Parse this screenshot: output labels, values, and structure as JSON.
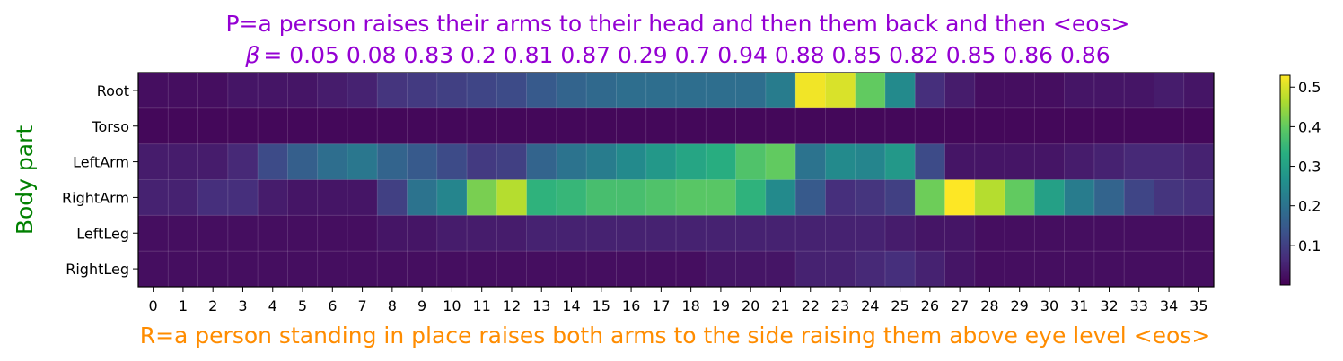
{
  "chart_data": {
    "type": "heatmap",
    "title_line1": "P=a person raises their arms to their head and then them back and then <eos>",
    "title_line2_symbol": "β",
    "title_line2_rest": "= 0.05 0.08 0.83 0.2 0.81 0.87 0.29 0.7 0.94 0.88 0.85 0.82 0.85 0.86 0.86",
    "ylabel": "Body part",
    "xlabel": "R=a person standing in place raises both arms to the side raising them above eye level <eos>",
    "title_color": "#9400D3",
    "ylabel_color": "#008000",
    "xlabel_color": "#FF8C00",
    "rows": [
      "Root",
      "Torso",
      "LeftArm",
      "RightArm",
      "LeftLeg",
      "RightLeg"
    ],
    "columns": [
      "0",
      "1",
      "2",
      "3",
      "4",
      "5",
      "6",
      "7",
      "8",
      "9",
      "10",
      "11",
      "12",
      "13",
      "14",
      "15",
      "16",
      "17",
      "18",
      "19",
      "20",
      "21",
      "22",
      "23",
      "24",
      "25",
      "26",
      "27",
      "28",
      "29",
      "30",
      "31",
      "32",
      "33",
      "34",
      "35"
    ],
    "values": [
      [
        0.02,
        0.02,
        0.02,
        0.03,
        0.03,
        0.03,
        0.04,
        0.05,
        0.08,
        0.09,
        0.1,
        0.11,
        0.12,
        0.15,
        0.17,
        0.18,
        0.19,
        0.19,
        0.19,
        0.19,
        0.19,
        0.22,
        0.52,
        0.5,
        0.4,
        0.25,
        0.07,
        0.04,
        0.02,
        0.02,
        0.02,
        0.03,
        0.03,
        0.03,
        0.04,
        0.03
      ],
      [
        0.01,
        0.01,
        0.01,
        0.01,
        0.01,
        0.01,
        0.01,
        0.01,
        0.01,
        0.01,
        0.01,
        0.01,
        0.01,
        0.01,
        0.01,
        0.01,
        0.01,
        0.01,
        0.01,
        0.01,
        0.01,
        0.01,
        0.01,
        0.01,
        0.01,
        0.01,
        0.01,
        0.01,
        0.01,
        0.01,
        0.01,
        0.01,
        0.01,
        0.01,
        0.01,
        0.01
      ],
      [
        0.04,
        0.04,
        0.04,
        0.06,
        0.12,
        0.16,
        0.19,
        0.21,
        0.17,
        0.15,
        0.12,
        0.09,
        0.1,
        0.17,
        0.2,
        0.22,
        0.25,
        0.28,
        0.31,
        0.33,
        0.38,
        0.4,
        0.2,
        0.25,
        0.24,
        0.28,
        0.12,
        0.03,
        0.03,
        0.03,
        0.03,
        0.04,
        0.05,
        0.06,
        0.06,
        0.05
      ],
      [
        0.05,
        0.05,
        0.07,
        0.07,
        0.04,
        0.03,
        0.03,
        0.03,
        0.1,
        0.2,
        0.24,
        0.42,
        0.47,
        0.34,
        0.35,
        0.37,
        0.37,
        0.38,
        0.39,
        0.39,
        0.34,
        0.25,
        0.15,
        0.07,
        0.08,
        0.1,
        0.41,
        0.53,
        0.47,
        0.4,
        0.3,
        0.22,
        0.17,
        0.11,
        0.08,
        0.07
      ],
      [
        0.02,
        0.02,
        0.02,
        0.02,
        0.02,
        0.02,
        0.02,
        0.02,
        0.03,
        0.03,
        0.04,
        0.04,
        0.04,
        0.05,
        0.05,
        0.05,
        0.05,
        0.05,
        0.05,
        0.05,
        0.05,
        0.05,
        0.05,
        0.05,
        0.05,
        0.04,
        0.03,
        0.03,
        0.02,
        0.02,
        0.02,
        0.02,
        0.02,
        0.02,
        0.02,
        0.02
      ],
      [
        0.02,
        0.02,
        0.02,
        0.02,
        0.02,
        0.02,
        0.02,
        0.02,
        0.02,
        0.02,
        0.02,
        0.02,
        0.02,
        0.02,
        0.02,
        0.02,
        0.02,
        0.02,
        0.02,
        0.03,
        0.03,
        0.03,
        0.05,
        0.05,
        0.06,
        0.07,
        0.05,
        0.03,
        0.02,
        0.02,
        0.02,
        0.02,
        0.02,
        0.02,
        0.02,
        0.02
      ]
    ],
    "colormap": "viridis",
    "vmin": 0.0,
    "vmax": 0.53,
    "colorbar_ticks": [
      0.1,
      0.2,
      0.3,
      0.4,
      0.5
    ],
    "colorbar_tick_labels": [
      "0.1",
      "0.2",
      "0.3",
      "0.4",
      "0.5"
    ]
  }
}
